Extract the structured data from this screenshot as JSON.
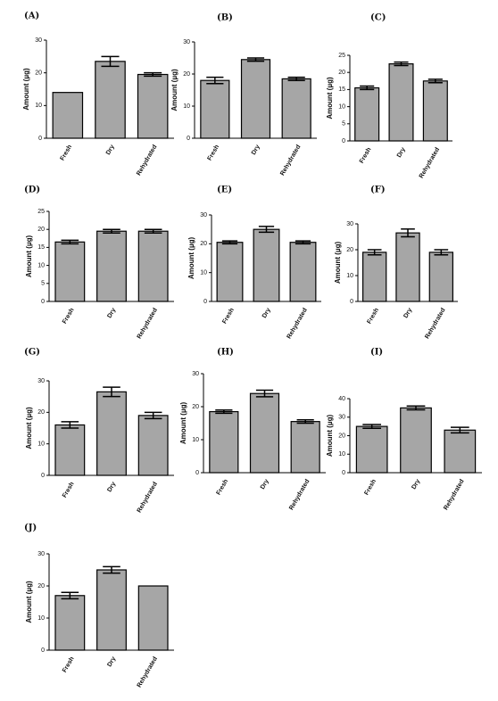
{
  "chart_data": [
    {
      "type": "bar",
      "title": "(A)",
      "y_label": "Amount (µg)",
      "categories": [
        "Fresh",
        "Dry",
        "Rehydrated"
      ],
      "values": [
        14,
        23.5,
        19.5
      ],
      "errors": [
        null,
        1.5,
        0.5
      ],
      "color": "#a6a6a6",
      "ylim": [
        0,
        30
      ],
      "yticks": [
        0,
        10,
        20,
        30
      ]
    },
    {
      "type": "bar",
      "title": "(B)",
      "y_label": "Amount (µg)",
      "categories": [
        "Fresh",
        "Dry",
        "Rehydrated"
      ],
      "values": [
        18,
        24.5,
        18.5
      ],
      "errors": [
        1,
        0.5,
        0.5
      ],
      "color": "#a6a6a6",
      "ylim": [
        0,
        30
      ],
      "yticks": [
        0,
        10,
        20,
        30
      ]
    },
    {
      "type": "bar",
      "title": "(C)",
      "y_label": "Amount (µg)",
      "categories": [
        "Fresh",
        "Dry",
        "Rehydrated"
      ],
      "values": [
        15.5,
        22.5,
        17.5
      ],
      "errors": [
        0.5,
        0.5,
        0.5
      ],
      "color": "#a6a6a6",
      "ylim": [
        0,
        25
      ],
      "yticks": [
        0,
        5,
        10,
        15,
        20,
        25
      ]
    },
    {
      "type": "bar",
      "title": "(D)",
      "y_label": "Amount (µg)",
      "categories": [
        "Fresh",
        "Dry",
        "Rehydrated"
      ],
      "values": [
        16.5,
        19.5,
        19.5
      ],
      "errors": [
        0.5,
        0.5,
        0.5
      ],
      "color": "#a6a6a6",
      "ylim": [
        0,
        25
      ],
      "yticks": [
        0,
        5,
        10,
        15,
        20,
        25
      ]
    },
    {
      "type": "bar",
      "title": "(E)",
      "y_label": "Amount (µg)",
      "categories": [
        "Fresh",
        "Dry",
        "Rehydrated"
      ],
      "values": [
        20.5,
        25,
        20.5
      ],
      "errors": [
        0.5,
        1,
        0.5
      ],
      "color": "#a6a6a6",
      "ylim": [
        0,
        30
      ],
      "yticks": [
        0,
        10,
        20,
        30
      ]
    },
    {
      "type": "bar",
      "title": "(F)",
      "y_label": "Amount (µg)",
      "categories": [
        "Fresh",
        "Dry",
        "Rehydrated"
      ],
      "values": [
        19,
        26.5,
        19
      ],
      "errors": [
        1,
        1.5,
        1
      ],
      "color": "#a6a6a6",
      "ylim": [
        0,
        30
      ],
      "yticks": [
        0,
        10,
        20,
        30
      ]
    },
    {
      "type": "bar",
      "title": "(G)",
      "y_label": "Amount (µg)",
      "categories": [
        "Fresh",
        "Dry",
        "Rehydrated"
      ],
      "values": [
        16,
        26.5,
        19
      ],
      "errors": [
        1,
        1.5,
        1
      ],
      "color": "#a6a6a6",
      "ylim": [
        0,
        30
      ],
      "yticks": [
        0,
        10,
        20,
        30
      ]
    },
    {
      "type": "bar",
      "title": "(H)",
      "y_label": "Amount (µg)",
      "categories": [
        "Fresh",
        "Dry",
        "Rehydrated"
      ],
      "values": [
        18.5,
        24,
        15.5
      ],
      "errors": [
        0.5,
        1,
        0.5
      ],
      "color": "#a6a6a6",
      "ylim": [
        0,
        30
      ],
      "yticks": [
        0,
        10,
        20,
        30
      ]
    },
    {
      "type": "bar",
      "title": "(I)",
      "y_label": "Amount (µg)",
      "categories": [
        "Fresh",
        "Dry",
        "Rehydrated"
      ],
      "values": [
        25,
        35,
        23
      ],
      "errors": [
        1,
        1,
        1.5
      ],
      "color": "#a6a6a6",
      "ylim": [
        0,
        40
      ],
      "yticks": [
        0,
        10,
        20,
        30,
        40
      ]
    },
    {
      "type": "bar",
      "title": "(J)",
      "y_label": "Amount (µg)",
      "categories": [
        "Fresh",
        "Dry",
        "Rehydrated"
      ],
      "values": [
        17,
        25,
        20
      ],
      "errors": [
        1,
        1,
        null
      ],
      "color": "#a6a6a6",
      "ylim": [
        0,
        30
      ],
      "yticks": [
        0,
        10,
        20,
        30
      ]
    }
  ]
}
